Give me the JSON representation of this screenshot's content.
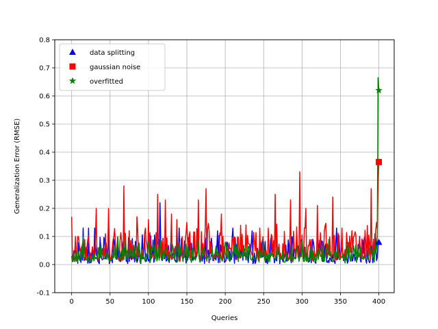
{
  "chart_data": {
    "type": "line",
    "title": "",
    "xlabel": "Queries",
    "ylabel": "Generalization Error (RMSE)",
    "xlim": [
      -22,
      420
    ],
    "ylim": [
      -0.1,
      0.8
    ],
    "xticks": [
      0,
      50,
      100,
      150,
      200,
      250,
      300,
      350,
      400
    ],
    "yticks": [
      -0.1,
      0.0,
      0.1,
      0.2,
      0.3,
      0.4,
      0.5,
      0.6,
      0.7,
      0.8
    ],
    "grid": true,
    "legend": "top-left",
    "series": [
      {
        "name": "data splitting",
        "color": "#0000ff",
        "marker": "triangle",
        "marker_point": [
          400,
          0.08
        ],
        "peaks": [
          [
            0,
            0.03
          ],
          [
            5,
            0.06
          ],
          [
            15,
            0.13
          ],
          [
            22,
            0.13
          ],
          [
            30,
            0.13
          ],
          [
            48,
            0.15
          ],
          [
            70,
            0.07
          ],
          [
            95,
            0.1
          ],
          [
            115,
            0.22
          ],
          [
            140,
            0.13
          ],
          [
            160,
            0.1
          ],
          [
            190,
            0.12
          ],
          [
            210,
            0.13
          ],
          [
            235,
            0.12
          ],
          [
            260,
            0.1
          ],
          [
            300,
            0.09
          ],
          [
            320,
            0.12
          ],
          [
            345,
            0.13
          ],
          [
            375,
            0.1
          ],
          [
            395,
            0.11
          ],
          [
            399,
            0.08
          ],
          [
            400,
            0.08
          ]
        ]
      },
      {
        "name": "gaussian noise",
        "color": "#ff0000",
        "marker": "square",
        "marker_point": [
          400,
          0.365
        ],
        "peaks": [
          [
            0,
            0.17
          ],
          [
            8,
            0.1
          ],
          [
            32,
            0.2
          ],
          [
            48,
            0.2
          ],
          [
            55,
            0.1
          ],
          [
            68,
            0.28
          ],
          [
            75,
            0.12
          ],
          [
            85,
            0.17
          ],
          [
            100,
            0.16
          ],
          [
            112,
            0.25
          ],
          [
            122,
            0.23
          ],
          [
            130,
            0.18
          ],
          [
            137,
            0.16
          ],
          [
            150,
            0.15
          ],
          [
            165,
            0.23
          ],
          [
            175,
            0.27
          ],
          [
            195,
            0.18
          ],
          [
            220,
            0.14
          ],
          [
            245,
            0.13
          ],
          [
            265,
            0.25
          ],
          [
            285,
            0.23
          ],
          [
            297,
            0.33
          ],
          [
            305,
            0.2
          ],
          [
            320,
            0.21
          ],
          [
            340,
            0.24
          ],
          [
            352,
            0.13
          ],
          [
            365,
            0.12
          ],
          [
            390,
            0.27
          ],
          [
            397,
            0.15
          ],
          [
            399,
            0.3
          ],
          [
            400,
            0.365
          ]
        ]
      },
      {
        "name": "overfitted",
        "color": "#008000",
        "marker": "star",
        "marker_point": [
          400,
          0.62
        ],
        "peaks": [
          [
            0,
            0.03
          ],
          [
            15,
            0.1
          ],
          [
            60,
            0.1
          ],
          [
            70,
            0.09
          ],
          [
            115,
            0.09
          ],
          [
            140,
            0.08
          ],
          [
            165,
            0.09
          ],
          [
            200,
            0.08
          ],
          [
            250,
            0.08
          ],
          [
            300,
            0.09
          ],
          [
            335,
            0.09
          ],
          [
            370,
            0.07
          ],
          [
            395,
            0.08
          ],
          [
            398,
            0.1
          ],
          [
            399,
            0.665
          ],
          [
            400,
            0.62
          ]
        ]
      }
    ]
  }
}
